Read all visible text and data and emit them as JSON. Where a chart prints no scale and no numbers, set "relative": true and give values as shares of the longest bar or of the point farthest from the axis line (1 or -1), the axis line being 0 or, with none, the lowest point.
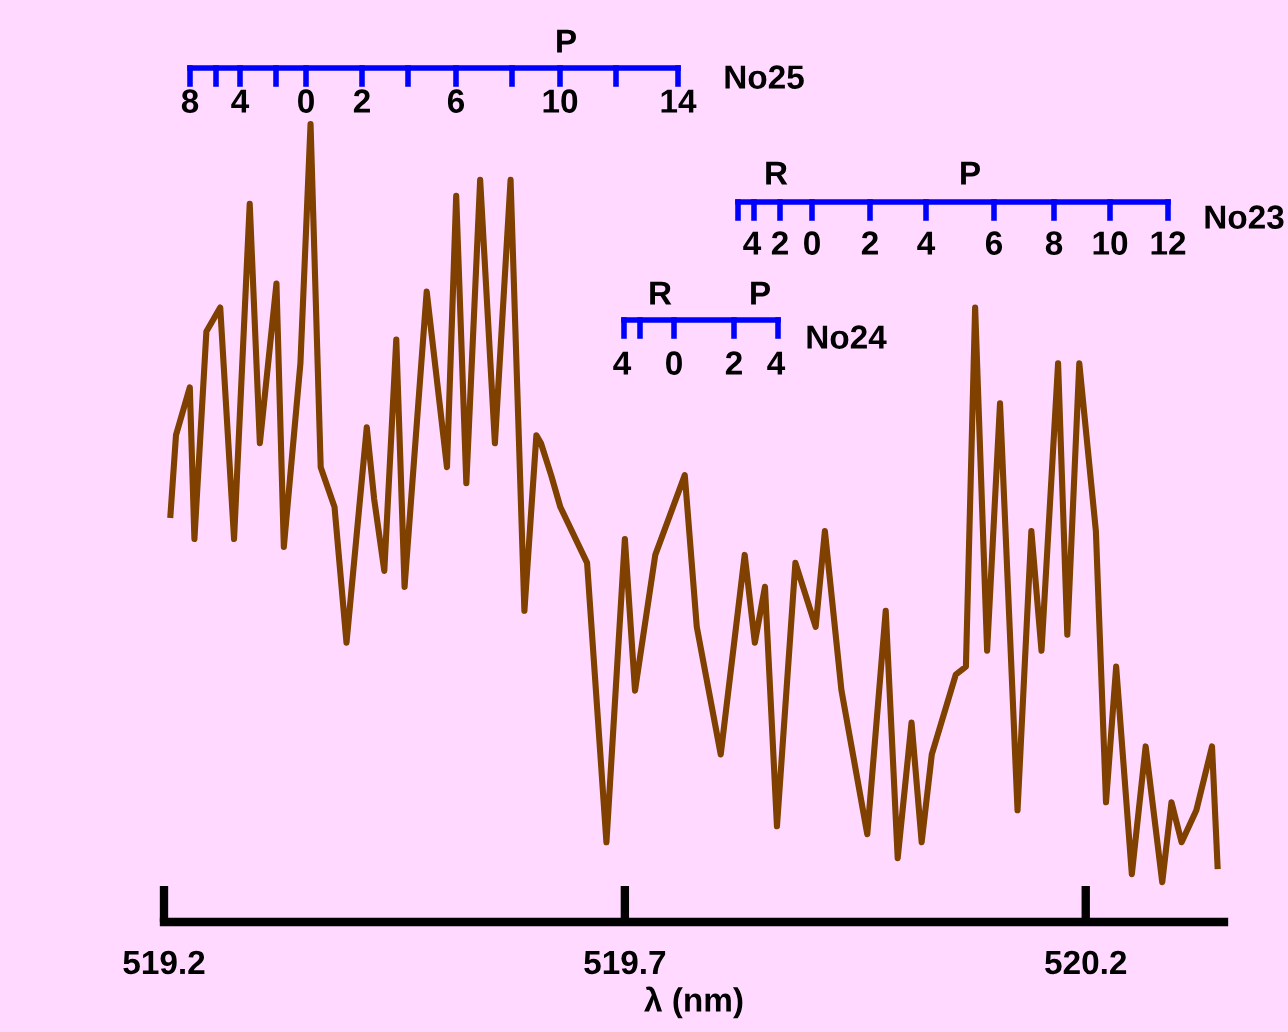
{
  "chart_data": {
    "type": "line",
    "xlabel": "λ (nm)",
    "relative": true,
    "grid": false,
    "xlim": [
      519.2,
      520.35
    ],
    "xticks": [
      519.2,
      519.7,
      520.2
    ],
    "x": [
      519.207,
      519.213,
      519.228,
      519.233,
      519.246,
      519.261,
      519.276,
      519.293,
      519.304,
      519.322,
      519.33,
      519.348,
      519.359,
      519.37,
      519.385,
      519.398,
      519.42,
      519.428,
      519.439,
      519.452,
      519.461,
      519.485,
      519.507,
      519.517,
      519.528,
      519.543,
      519.559,
      519.576,
      519.591,
      519.604,
      519.609,
      519.62,
      519.63,
      519.659,
      519.68,
      519.7,
      519.711,
      519.733,
      519.765,
      519.778,
      519.804,
      519.83,
      519.841,
      519.852,
      519.865,
      519.885,
      519.907,
      519.917,
      519.935,
      519.963,
      519.983,
      519.996,
      520.011,
      520.022,
      520.033,
      520.059,
      520.07,
      520.08,
      520.093,
      520.107,
      520.126,
      520.141,
      520.152,
      520.17,
      520.18,
      520.193,
      520.211,
      520.222,
      520.233,
      520.25,
      520.265,
      520.283,
      520.293,
      520.304,
      520.32,
      520.337,
      520.343
    ],
    "series": [
      {
        "color": "#7f4000",
        "values": [
          0.51,
          0.61,
          0.67,
          0.48,
          0.74,
          0.77,
          0.48,
          0.9,
          0.6,
          0.8,
          0.47,
          0.7,
          1.0,
          0.57,
          0.52,
          0.35,
          0.62,
          0.53,
          0.44,
          0.73,
          0.42,
          0.79,
          0.57,
          0.91,
          0.55,
          0.93,
          0.6,
          0.93,
          0.39,
          0.61,
          0.6,
          0.56,
          0.52,
          0.45,
          0.1,
          0.48,
          0.29,
          0.46,
          0.56,
          0.37,
          0.21,
          0.46,
          0.35,
          0.42,
          0.12,
          0.45,
          0.37,
          0.49,
          0.29,
          0.11,
          0.39,
          0.08,
          0.25,
          0.1,
          0.21,
          0.31,
          0.32,
          0.77,
          0.34,
          0.65,
          0.14,
          0.49,
          0.34,
          0.7,
          0.36,
          0.7,
          0.49,
          0.15,
          0.32,
          0.06,
          0.22,
          0.05,
          0.15,
          0.1,
          0.14,
          0.22,
          0.07
        ]
      }
    ],
    "annotations": [
      "8",
      "4",
      "0",
      "2",
      "6",
      "10",
      "14",
      "P",
      "No25",
      "4",
      "2",
      "0",
      "2",
      "4",
      "6",
      "8",
      "10",
      "12",
      "R",
      "P",
      "No23",
      "4",
      "0",
      "2",
      "4",
      "R",
      "P",
      "No24"
    ]
  }
}
